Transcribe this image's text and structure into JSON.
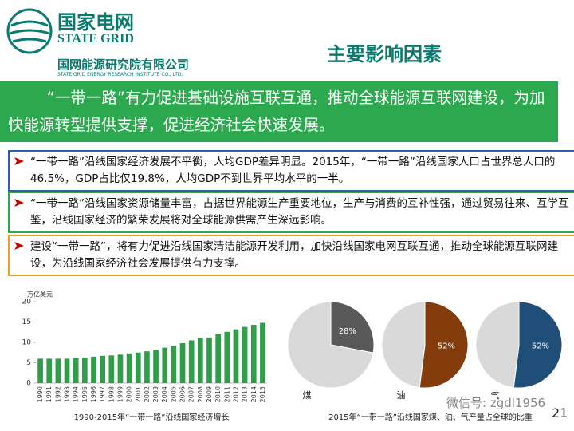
{
  "header": {
    "logo_cn": "国家电网",
    "logo_en": "STATE GRID",
    "org_cn": "国网能源研究院有限公司",
    "org_en": "STATE GRID ENERGY RESEARCH INSTITUTE CO., LTD.",
    "title": "主要影响因素"
  },
  "banner": "“一带一路”有力促进基础设施互联互通，推动全球能源互联网建设，为加快能源转型提供支撑，促进经济社会快速发展。",
  "points": [
    "“一带一路”沿线国家经济发展不平衡，人均GDP差异明显。2015年，“一带一路”沿线国家人口占世界总人口的46.5%，GDP占比仅19.8%，人均GDP不到世界平均水平的一半。",
    "“一带一路”沿线国家资源储量丰富，占据世界能源生产重要地位，生产与消费的互补性强，通过贸易往来、互学互鉴，沿线国家经济的繁荣发展将对全球能源供需产生深远影响。",
    "建设“一带一路”，将有力促进沿线国家清洁能源开发利用，加快沿线国家电网互联互通，推动全球能源互联网建设，为沿线国家经济社会发展提供有力支撑。"
  ],
  "chart_data": [
    {
      "type": "bar",
      "y_label": "万亿美元",
      "caption": "1990-2015年“一带一路”沿线国家经济增长",
      "categories": [
        "1990",
        "1991",
        "1992",
        "1993",
        "1994",
        "1995",
        "1996",
        "1997",
        "1998",
        "1999",
        "2000",
        "2001",
        "2002",
        "2003",
        "2004",
        "2005",
        "2006",
        "2007",
        "2008",
        "2009",
        "2010",
        "2011",
        "2012",
        "2013",
        "2014",
        "2015"
      ],
      "values": [
        6,
        6,
        6,
        6,
        6.2,
        6.3,
        6.5,
        6.7,
        6.8,
        7,
        7.3,
        7.5,
        7.8,
        8.2,
        8.7,
        9.2,
        9.8,
        10.5,
        11,
        11.2,
        12,
        12.6,
        13.2,
        13.8,
        14.3,
        14.8
      ],
      "color": "#2e9e48",
      "ylim": [
        0,
        20
      ],
      "yticks": [
        0,
        5,
        10,
        15,
        20
      ]
    },
    {
      "type": "pie",
      "label": "煤",
      "values": [
        28,
        72
      ],
      "value_labels": [
        "28%",
        null
      ],
      "colors": [
        "#595959",
        "#d9d9d9"
      ]
    },
    {
      "type": "pie",
      "label": "油",
      "values": [
        52,
        48
      ],
      "value_labels": [
        "52%",
        null
      ],
      "colors": [
        "#843c0c",
        "#d9d9d9"
      ]
    },
    {
      "type": "pie",
      "label": "气",
      "values": [
        52,
        48
      ],
      "value_labels": [
        "52%",
        null
      ],
      "colors": [
        "#1f4e79",
        "#d9d9d9"
      ]
    }
  ],
  "pie_caption": "2015年“一带一路”沿线国家煤、油、气产量占全球的比重",
  "watermark": "微信号: zgdl1956",
  "page_number": "21"
}
